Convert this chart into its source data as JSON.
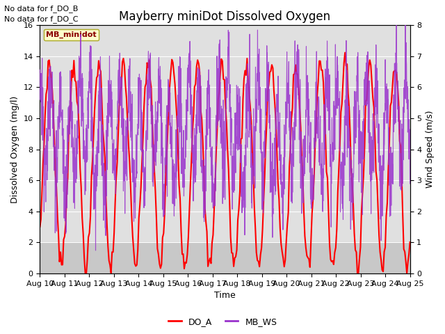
{
  "title": "Mayberry miniDot Dissolved Oxygen",
  "xlabel": "Time",
  "ylabel_left": "Dissolved Oxygen (mg/l)",
  "ylabel_right": "Wind Speed (m/s)",
  "ylim_left": [
    0,
    16
  ],
  "ylim_right": [
    0.0,
    8.0
  ],
  "yticks_left": [
    0,
    2,
    4,
    6,
    8,
    10,
    12,
    14,
    16
  ],
  "yticks_right": [
    0.0,
    1.0,
    2.0,
    3.0,
    4.0,
    5.0,
    6.0,
    7.0,
    8.0
  ],
  "xticklabels": [
    "Aug 10",
    "Aug 11",
    "Aug 12",
    "Aug 13",
    "Aug 14",
    "Aug 15",
    "Aug 16",
    "Aug 17",
    "Aug 18",
    "Aug 19",
    "Aug 20",
    "Aug 21",
    "Aug 22",
    "Aug 23",
    "Aug 24",
    "Aug 25"
  ],
  "no_data_text": [
    "No data for f_DO_B",
    "No data for f_DO_C"
  ],
  "legend_box_label": "MB_minidot",
  "legend_entries": [
    "DO_A",
    "MB_WS"
  ],
  "line_colors": [
    "red",
    "#9932CC"
  ],
  "plot_bg_color": "#e0e0e0",
  "gray_band_color": "#c8c8c8",
  "gray_band_ylim": [
    0,
    2
  ],
  "title_fontsize": 12,
  "label_fontsize": 9,
  "tick_fontsize": 8,
  "no_data_fontsize": 8
}
